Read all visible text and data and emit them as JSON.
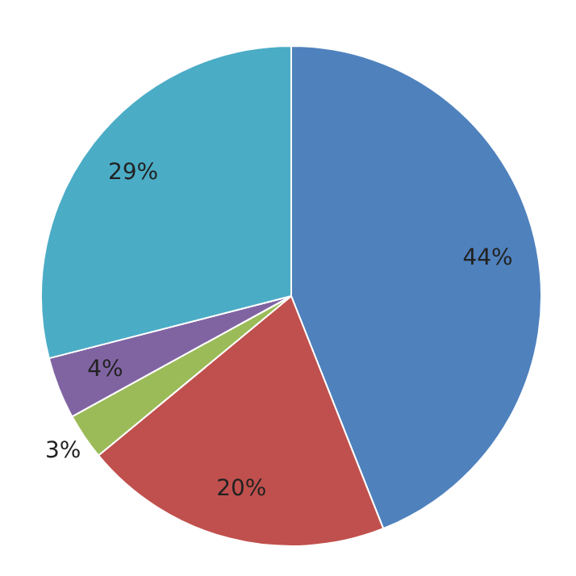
{
  "chart_data": {
    "type": "pie",
    "categories": [
      null,
      null,
      null,
      null,
      null
    ],
    "values": [
      44,
      20,
      3,
      4,
      29
    ],
    "colors": [
      "#4f81bd",
      "#c0504d",
      "#9bbb59",
      "#8064a2",
      "#4bacc6"
    ],
    "value_labels": [
      "44%",
      "20%",
      "3%",
      "4%",
      "29%"
    ],
    "legend": false
  }
}
